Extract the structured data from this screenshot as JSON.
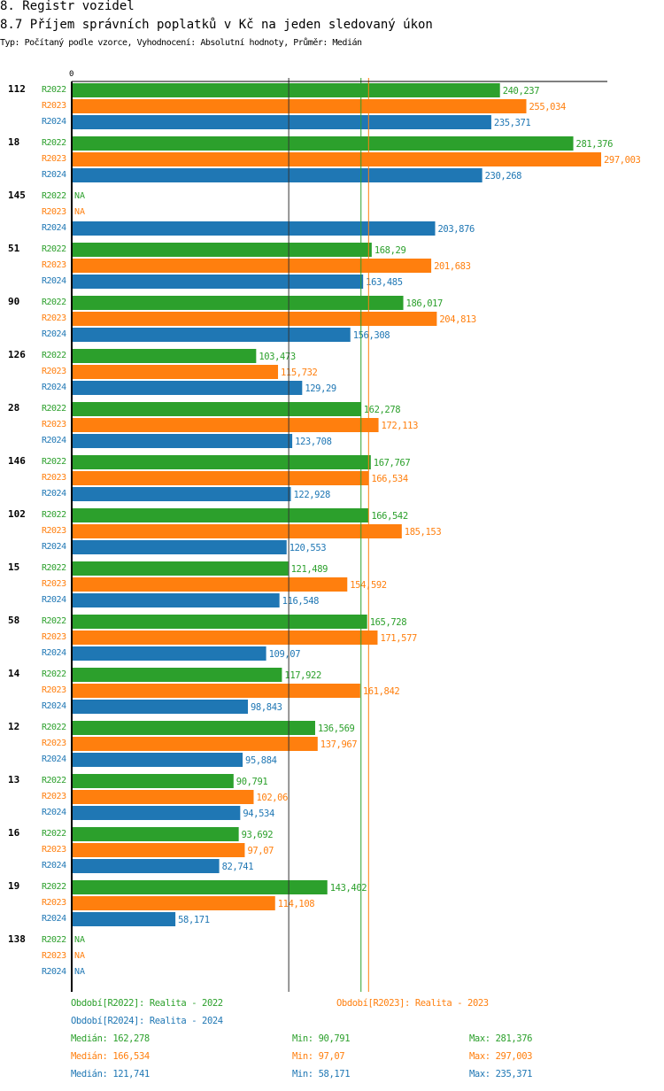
{
  "header": {
    "section": "8. Registr vozidel",
    "title": "8.7 Příjem správních poplatků v Kč na jeden sledovaný úkon",
    "subtitle": "Typ: Počítaný podle vzorce, Vyhodnocení: Absolutní hodnoty, Průměr: Medián"
  },
  "chart_data": {
    "type": "bar",
    "orientation": "horizontal",
    "x_tick_labels": [
      "0"
    ],
    "xlim": [
      0,
      297.003
    ],
    "colors": {
      "R2022": "#2ca02c",
      "R2023": "#ff7f0e",
      "R2024": "#1f77b4"
    },
    "series_names": [
      "R2022",
      "R2023",
      "R2024"
    ],
    "na_label": "NA",
    "categories": [
      "112",
      "18",
      "145",
      "51",
      "90",
      "126",
      "28",
      "146",
      "102",
      "15",
      "58",
      "14",
      "12",
      "13",
      "16",
      "19",
      "138"
    ],
    "series": [
      {
        "name": "R2022",
        "values": [
          240.237,
          281.376,
          null,
          168.29,
          186.017,
          103.473,
          162.278,
          167.767,
          166.542,
          121.489,
          165.728,
          117.922,
          136.569,
          90.791,
          93.692,
          143.402,
          null
        ]
      },
      {
        "name": "R2023",
        "values": [
          255.034,
          297.003,
          null,
          201.683,
          204.813,
          115.732,
          172.113,
          166.534,
          185.153,
          154.592,
          171.577,
          161.842,
          137.967,
          102.06,
          97.07,
          114.108,
          null
        ]
      },
      {
        "name": "R2024",
        "values": [
          235.371,
          230.268,
          203.876,
          163.485,
          156.308,
          129.29,
          123.708,
          122.928,
          120.553,
          116.548,
          109.07,
          98.843,
          95.884,
          94.534,
          82.741,
          58.171,
          null
        ]
      }
    ],
    "median_lines": {
      "R2022": 162.278,
      "R2023": 166.534,
      "R2024": 121.741
    }
  },
  "legend": {
    "periods": [
      {
        "label": "Období[R2022]: Realita - 2022"
      },
      {
        "label": "Období[R2023]: Realita - 2023"
      },
      {
        "label": "Období[R2024]: Realita - 2024"
      }
    ],
    "stats": [
      {
        "median": "Medián: 162,278",
        "min": "Min: 90,791",
        "max": "Max: 281,376"
      },
      {
        "median": "Medián: 166,534",
        "min": "Min: 97,07",
        "max": "Max: 297,003"
      },
      {
        "median": "Medián: 121,741",
        "min": "Min: 58,171",
        "max": "Max: 235,371"
      }
    ]
  }
}
